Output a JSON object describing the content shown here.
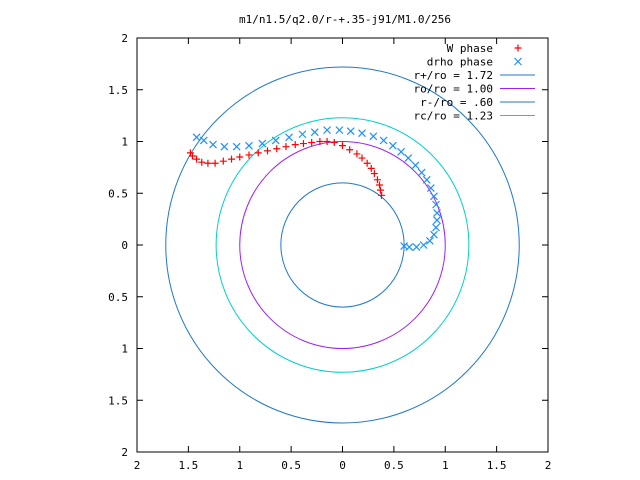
{
  "chart_data": {
    "type": "scatter",
    "title": "m1/n1.5/q2.0/r-+.35-j91/M1.0/256",
    "xlim": [
      -2,
      2
    ],
    "ylim": [
      -2,
      2
    ],
    "grid": false,
    "legend_position": "top-right",
    "x_ticks": [
      {
        "value": -2,
        "label": "2"
      },
      {
        "value": -1.5,
        "label": "1.5"
      },
      {
        "value": -1,
        "label": "1"
      },
      {
        "value": -0.5,
        "label": "0.5"
      },
      {
        "value": 0,
        "label": "0"
      },
      {
        "value": 0.5,
        "label": "0.5"
      },
      {
        "value": 1,
        "label": "1"
      },
      {
        "value": 1.5,
        "label": "1.5"
      },
      {
        "value": 2,
        "label": "2"
      }
    ],
    "y_ticks": [
      {
        "value": 2,
        "label": "2"
      },
      {
        "value": 1.5,
        "label": "1.5"
      },
      {
        "value": 1,
        "label": "1"
      },
      {
        "value": 0.5,
        "label": "0.5"
      },
      {
        "value": 0,
        "label": "0"
      },
      {
        "value": -0.5,
        "label": "0.5"
      },
      {
        "value": -1,
        "label": "1"
      },
      {
        "value": -1.5,
        "label": "1.5"
      },
      {
        "value": -2,
        "label": "2"
      }
    ],
    "series": [
      {
        "name": "W phase",
        "kind": "points",
        "marker": "+",
        "color": "#ff0000",
        "points": [
          [
            0.38,
            0.48
          ],
          [
            0.37,
            0.53
          ],
          [
            0.36,
            0.58
          ],
          [
            0.34,
            0.63
          ],
          [
            0.31,
            0.69
          ],
          [
            0.28,
            0.74
          ],
          [
            0.24,
            0.79
          ],
          [
            0.19,
            0.84
          ],
          [
            0.14,
            0.88
          ],
          [
            0.07,
            0.92
          ],
          [
            0.0,
            0.96
          ],
          [
            -0.08,
            0.99
          ],
          [
            -0.15,
            1.0
          ],
          [
            -0.22,
            1.0
          ],
          [
            -0.3,
            0.99
          ],
          [
            -0.38,
            0.98
          ],
          [
            -0.46,
            0.97
          ],
          [
            -0.55,
            0.95
          ],
          [
            -0.64,
            0.93
          ],
          [
            -0.73,
            0.91
          ],
          [
            -0.82,
            0.89
          ],
          [
            -0.91,
            0.87
          ],
          [
            -1.0,
            0.85
          ],
          [
            -1.08,
            0.83
          ],
          [
            -1.16,
            0.81
          ],
          [
            -1.24,
            0.79
          ],
          [
            -1.31,
            0.79
          ],
          [
            -1.37,
            0.8
          ],
          [
            -1.42,
            0.83
          ],
          [
            -1.46,
            0.86
          ],
          [
            -1.48,
            0.89
          ]
        ]
      },
      {
        "name": "drho phase",
        "kind": "points",
        "marker": "x",
        "color": "#1e90ff",
        "points": [
          [
            0.6,
            -0.01
          ],
          [
            0.65,
            -0.02
          ],
          [
            0.72,
            -0.02
          ],
          [
            0.79,
            0.0
          ],
          [
            0.85,
            0.04
          ],
          [
            0.89,
            0.1
          ],
          [
            0.91,
            0.17
          ],
          [
            0.92,
            0.24
          ],
          [
            0.92,
            0.31
          ],
          [
            0.91,
            0.39
          ],
          [
            0.89,
            0.47
          ],
          [
            0.86,
            0.55
          ],
          [
            0.82,
            0.63
          ],
          [
            0.77,
            0.7
          ],
          [
            0.71,
            0.77
          ],
          [
            0.64,
            0.84
          ],
          [
            0.57,
            0.9
          ],
          [
            0.49,
            0.96
          ],
          [
            0.4,
            1.01
          ],
          [
            0.3,
            1.05
          ],
          [
            0.19,
            1.08
          ],
          [
            0.08,
            1.1
          ],
          [
            -0.03,
            1.11
          ],
          [
            -0.15,
            1.11
          ],
          [
            -0.27,
            1.09
          ],
          [
            -0.39,
            1.07
          ],
          [
            -0.52,
            1.04
          ],
          [
            -0.65,
            1.01
          ],
          [
            -0.78,
            0.98
          ],
          [
            -0.91,
            0.96
          ],
          [
            -1.03,
            0.95
          ],
          [
            -1.15,
            0.95
          ],
          [
            -1.26,
            0.97
          ],
          [
            -1.35,
            1.01
          ],
          [
            -1.42,
            1.04
          ]
        ]
      },
      {
        "name": "r+/ro = 1.72",
        "kind": "circle",
        "radius": 1.72,
        "color": "#1f78c8"
      },
      {
        "name": "ro/ro = 1.00",
        "kind": "circle",
        "radius": 1.0,
        "color": "#a020f0"
      },
      {
        "name": "r-/ro = .60",
        "kind": "circle",
        "radius": 0.6,
        "color": "#1f78c8"
      },
      {
        "name": "rc/ro = 1.23",
        "kind": "circle",
        "radius": 1.23,
        "color": "#00d0d0"
      }
    ]
  }
}
